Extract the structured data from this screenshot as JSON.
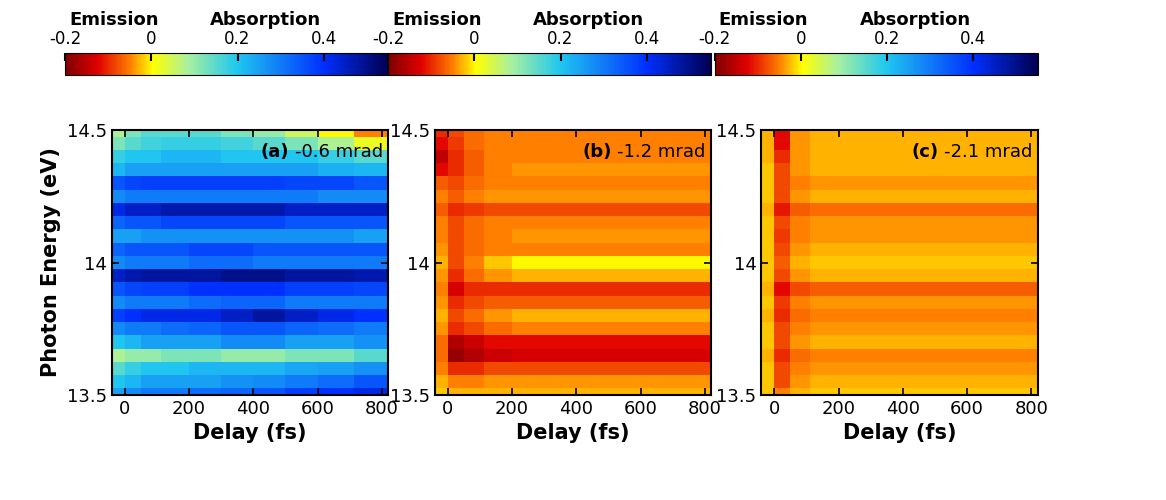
{
  "chart_data": [
    {
      "type": "heatmap",
      "label": "(a)",
      "annotation": "-0.6 mrad",
      "x_label": "Delay (fs)",
      "y_label": "Photon Energy (eV)",
      "x": [
        -25,
        25,
        75,
        150,
        250,
        350,
        450,
        550,
        650,
        775
      ],
      "y": [
        13.5,
        13.55,
        13.6,
        13.65,
        13.7,
        13.75,
        13.8,
        13.85,
        13.9,
        13.95,
        14.0,
        14.05,
        14.1,
        14.15,
        14.2,
        14.25,
        14.3,
        14.35,
        14.4,
        14.45,
        14.5
      ],
      "cells": [
        [
          0.25,
          0.28,
          0.3,
          0.3,
          0.32,
          0.33,
          0.35,
          0.38,
          0.4,
          0.42
        ],
        [
          0.2,
          0.22,
          0.25,
          0.25,
          0.25,
          0.27,
          0.28,
          0.3,
          0.32,
          0.35
        ],
        [
          0.15,
          0.18,
          0.2,
          0.2,
          0.22,
          0.22,
          0.22,
          0.24,
          0.25,
          0.27
        ],
        [
          0.08,
          0.1,
          0.1,
          0.12,
          0.12,
          0.1,
          0.1,
          0.12,
          0.12,
          0.15
        ],
        [
          0.2,
          0.22,
          0.25,
          0.25,
          0.25,
          0.28,
          0.28,
          0.25,
          0.25,
          0.27
        ],
        [
          0.28,
          0.3,
          0.3,
          0.32,
          0.33,
          0.35,
          0.35,
          0.33,
          0.32,
          0.3
        ],
        [
          0.38,
          0.4,
          0.42,
          0.42,
          0.42,
          0.45,
          0.48,
          0.45,
          0.42,
          0.4
        ],
        [
          0.28,
          0.3,
          0.3,
          0.3,
          0.32,
          0.33,
          0.33,
          0.3,
          0.3,
          0.3
        ],
        [
          0.35,
          0.37,
          0.38,
          0.38,
          0.4,
          0.4,
          0.4,
          0.38,
          0.38,
          0.37
        ],
        [
          0.45,
          0.47,
          0.48,
          0.48,
          0.48,
          0.5,
          0.5,
          0.48,
          0.48,
          0.47
        ],
        [
          0.28,
          0.3,
          0.3,
          0.3,
          0.32,
          0.32,
          0.3,
          0.3,
          0.3,
          0.3
        ],
        [
          0.33,
          0.35,
          0.35,
          0.35,
          0.37,
          0.37,
          0.35,
          0.35,
          0.35,
          0.35
        ],
        [
          0.25,
          0.25,
          0.27,
          0.27,
          0.27,
          0.27,
          0.27,
          0.27,
          0.27,
          0.25
        ],
        [
          0.33,
          0.35,
          0.35,
          0.37,
          0.37,
          0.37,
          0.37,
          0.35,
          0.35,
          0.35
        ],
        [
          0.42,
          0.45,
          0.45,
          0.47,
          0.47,
          0.47,
          0.47,
          0.45,
          0.45,
          0.45
        ],
        [
          0.28,
          0.3,
          0.3,
          0.3,
          0.3,
          0.3,
          0.3,
          0.3,
          0.28,
          0.28
        ],
        [
          0.35,
          0.37,
          0.38,
          0.38,
          0.38,
          0.38,
          0.38,
          0.37,
          0.37,
          0.35
        ],
        [
          0.22,
          0.25,
          0.25,
          0.25,
          0.25,
          0.25,
          0.25,
          0.25,
          0.23,
          0.22
        ],
        [
          0.18,
          0.2,
          0.2,
          0.22,
          0.22,
          0.2,
          0.2,
          0.2,
          0.18,
          0.15
        ],
        [
          0.12,
          0.15,
          0.17,
          0.18,
          0.18,
          0.17,
          0.15,
          0.12,
          0.08,
          0.02
        ],
        [
          0.08,
          0.12,
          0.15,
          0.15,
          0.15,
          0.12,
          0.1,
          0.05,
          0.0,
          -0.05
        ]
      ],
      "xlim": [
        -40,
        820
      ],
      "xticks": [
        0,
        200,
        400,
        600,
        800
      ],
      "ylim": [
        13.5,
        14.5
      ],
      "yticks": [
        13.5,
        14,
        14.5
      ],
      "colorbar": {
        "range": [
          -0.2,
          0.55
        ],
        "ticks": [
          -0.2,
          0,
          0.2,
          0.4
        ],
        "labels": [
          "Emission",
          "Absorption"
        ]
      }
    },
    {
      "type": "heatmap",
      "label": "(b)",
      "annotation": "-1.2 mrad",
      "x_label": "Delay (fs)",
      "x": [
        -25,
        25,
        75,
        150,
        250,
        350,
        450,
        550,
        650,
        775
      ],
      "y": [
        13.5,
        13.55,
        13.6,
        13.65,
        13.7,
        13.75,
        13.8,
        13.85,
        13.9,
        13.95,
        14.0,
        14.05,
        14.1,
        14.15,
        14.2,
        14.25,
        14.3,
        14.35,
        14.4,
        14.45,
        14.5
      ],
      "cells": [
        [
          -0.02,
          -0.03,
          -0.03,
          -0.03,
          -0.03,
          -0.03,
          -0.03,
          -0.03,
          -0.03,
          -0.03
        ],
        [
          -0.03,
          -0.05,
          -0.05,
          -0.04,
          -0.04,
          -0.04,
          -0.04,
          -0.04,
          -0.04,
          -0.04
        ],
        [
          -0.05,
          -0.1,
          -0.1,
          -0.08,
          -0.08,
          -0.08,
          -0.08,
          -0.08,
          -0.08,
          -0.08
        ],
        [
          -0.06,
          -0.18,
          -0.16,
          -0.14,
          -0.13,
          -0.13,
          -0.13,
          -0.13,
          -0.13,
          -0.13
        ],
        [
          -0.06,
          -0.16,
          -0.14,
          -0.12,
          -0.12,
          -0.12,
          -0.12,
          -0.12,
          -0.12,
          -0.12
        ],
        [
          -0.04,
          -0.1,
          -0.08,
          -0.06,
          -0.05,
          -0.05,
          -0.05,
          -0.05,
          -0.05,
          -0.05
        ],
        [
          -0.03,
          -0.08,
          -0.06,
          -0.04,
          -0.03,
          -0.03,
          -0.03,
          -0.03,
          -0.03,
          -0.03
        ],
        [
          -0.04,
          -0.1,
          -0.08,
          -0.07,
          -0.07,
          -0.07,
          -0.07,
          -0.07,
          -0.07,
          -0.07
        ],
        [
          -0.05,
          -0.13,
          -0.1,
          -0.1,
          -0.1,
          -0.1,
          -0.1,
          -0.1,
          -0.1,
          -0.1
        ],
        [
          -0.04,
          -0.1,
          -0.06,
          -0.04,
          -0.03,
          -0.03,
          -0.03,
          -0.03,
          -0.03,
          -0.03
        ],
        [
          -0.03,
          -0.08,
          -0.05,
          -0.02,
          0.0,
          0.0,
          0.0,
          0.0,
          0.0,
          0.0
        ],
        [
          -0.04,
          -0.08,
          -0.06,
          -0.05,
          -0.05,
          -0.05,
          -0.05,
          -0.05,
          -0.05,
          -0.05
        ],
        [
          -0.05,
          -0.08,
          -0.06,
          -0.05,
          -0.04,
          -0.04,
          -0.04,
          -0.04,
          -0.04,
          -0.04
        ],
        [
          -0.05,
          -0.08,
          -0.06,
          -0.05,
          -0.05,
          -0.05,
          -0.05,
          -0.05,
          -0.05,
          -0.05
        ],
        [
          -0.07,
          -0.1,
          -0.09,
          -0.08,
          -0.08,
          -0.08,
          -0.08,
          -0.08,
          -0.08,
          -0.08
        ],
        [
          -0.05,
          -0.07,
          -0.05,
          -0.04,
          -0.04,
          -0.04,
          -0.04,
          -0.04,
          -0.04,
          -0.04
        ],
        [
          -0.07,
          -0.08,
          -0.06,
          -0.05,
          -0.05,
          -0.05,
          -0.05,
          -0.05,
          -0.05,
          -0.05
        ],
        [
          -0.12,
          -0.1,
          -0.07,
          -0.05,
          -0.04,
          -0.04,
          -0.04,
          -0.04,
          -0.04,
          -0.04
        ],
        [
          -0.15,
          -0.1,
          -0.07,
          -0.05,
          -0.05,
          -0.05,
          -0.05,
          -0.05,
          -0.05,
          -0.05
        ],
        [
          -0.12,
          -0.09,
          -0.06,
          -0.05,
          -0.05,
          -0.05,
          -0.05,
          -0.05,
          -0.05,
          -0.05
        ],
        [
          -0.1,
          -0.08,
          -0.06,
          -0.05,
          -0.05,
          -0.05,
          -0.05,
          -0.05,
          -0.05,
          -0.05
        ]
      ],
      "xlim": [
        -40,
        820
      ],
      "xticks": [
        0,
        200,
        400,
        600,
        800
      ],
      "ylim": [
        13.5,
        14.5
      ],
      "yticks": [
        13.5,
        14,
        14.5
      ],
      "colorbar": {
        "range": [
          -0.2,
          0.55
        ],
        "ticks": [
          -0.2,
          0,
          0.2,
          0.4
        ],
        "labels": [
          "Emission",
          "Absorption"
        ]
      }
    },
    {
      "type": "heatmap",
      "label": "(c)",
      "annotation": "-2.1 mrad",
      "x_label": "Delay (fs)",
      "x": [
        -25,
        25,
        75,
        150,
        250,
        350,
        450,
        550,
        650,
        775
      ],
      "y": [
        13.5,
        13.55,
        13.6,
        13.65,
        13.7,
        13.75,
        13.8,
        13.85,
        13.9,
        13.95,
        14.0,
        14.05,
        14.1,
        14.15,
        14.2,
        14.25,
        14.3,
        14.35,
        14.4,
        14.45,
        14.5
      ],
      "cells": [
        [
          -0.02,
          -0.05,
          -0.03,
          -0.02,
          -0.02,
          -0.02,
          -0.02,
          -0.02,
          -0.02,
          -0.02
        ],
        [
          -0.02,
          -0.08,
          -0.04,
          -0.03,
          -0.03,
          -0.03,
          -0.03,
          -0.03,
          -0.03,
          -0.03
        ],
        [
          -0.02,
          -0.08,
          -0.05,
          -0.04,
          -0.04,
          -0.04,
          -0.04,
          -0.04,
          -0.04,
          -0.04
        ],
        [
          -0.03,
          -0.1,
          -0.06,
          -0.05,
          -0.05,
          -0.05,
          -0.05,
          -0.05,
          -0.05,
          -0.05
        ],
        [
          -0.02,
          -0.08,
          -0.04,
          -0.03,
          -0.03,
          -0.03,
          -0.03,
          -0.03,
          -0.03,
          -0.03
        ],
        [
          -0.02,
          -0.08,
          -0.05,
          -0.04,
          -0.04,
          -0.04,
          -0.04,
          -0.04,
          -0.04,
          -0.04
        ],
        [
          -0.03,
          -0.1,
          -0.06,
          -0.05,
          -0.05,
          -0.05,
          -0.05,
          -0.05,
          -0.05,
          -0.05
        ],
        [
          -0.02,
          -0.09,
          -0.05,
          -0.04,
          -0.04,
          -0.04,
          -0.04,
          -0.04,
          -0.04,
          -0.04
        ],
        [
          -0.03,
          -0.12,
          -0.08,
          -0.07,
          -0.07,
          -0.07,
          -0.07,
          -0.07,
          -0.07,
          -0.07
        ],
        [
          -0.02,
          -0.08,
          -0.04,
          -0.03,
          -0.03,
          -0.03,
          -0.03,
          -0.03,
          -0.03,
          -0.03
        ],
        [
          -0.02,
          -0.07,
          -0.03,
          -0.02,
          -0.02,
          -0.02,
          -0.02,
          -0.02,
          -0.02,
          -0.02
        ],
        [
          -0.02,
          -0.08,
          -0.04,
          -0.03,
          -0.03,
          -0.03,
          -0.03,
          -0.03,
          -0.03,
          -0.03
        ],
        [
          -0.02,
          -0.09,
          -0.05,
          -0.04,
          -0.04,
          -0.04,
          -0.04,
          -0.04,
          -0.04,
          -0.04
        ],
        [
          -0.02,
          -0.08,
          -0.05,
          -0.04,
          -0.04,
          -0.04,
          -0.04,
          -0.04,
          -0.04,
          -0.04
        ],
        [
          -0.03,
          -0.11,
          -0.07,
          -0.06,
          -0.06,
          -0.06,
          -0.06,
          -0.06,
          -0.06,
          -0.06
        ],
        [
          -0.02,
          -0.08,
          -0.04,
          -0.03,
          -0.03,
          -0.03,
          -0.03,
          -0.03,
          -0.03,
          -0.03
        ],
        [
          -0.02,
          -0.08,
          -0.05,
          -0.04,
          -0.04,
          -0.04,
          -0.04,
          -0.04,
          -0.04,
          -0.04
        ],
        [
          -0.02,
          -0.08,
          -0.04,
          -0.03,
          -0.03,
          -0.03,
          -0.03,
          -0.03,
          -0.03,
          -0.03
        ],
        [
          -0.03,
          -0.1,
          -0.04,
          -0.03,
          -0.03,
          -0.03,
          -0.03,
          -0.03,
          -0.03,
          -0.03
        ],
        [
          -0.03,
          -0.12,
          -0.04,
          -0.03,
          -0.03,
          -0.03,
          -0.03,
          -0.03,
          -0.03,
          -0.03
        ],
        [
          -0.03,
          -0.12,
          -0.04,
          -0.03,
          -0.03,
          -0.03,
          -0.03,
          -0.03,
          -0.03,
          -0.03
        ]
      ],
      "xlim": [
        -40,
        820
      ],
      "xticks": [
        0,
        200,
        400,
        600,
        800
      ],
      "ylim": [
        13.5,
        14.5
      ],
      "yticks": [
        13.5,
        14,
        14.5
      ],
      "colorbar": {
        "range": [
          -0.2,
          0.55
        ],
        "ticks": [
          -0.2,
          0,
          0.2,
          0.4
        ],
        "labels": [
          "Emission",
          "Absorption"
        ]
      }
    }
  ]
}
